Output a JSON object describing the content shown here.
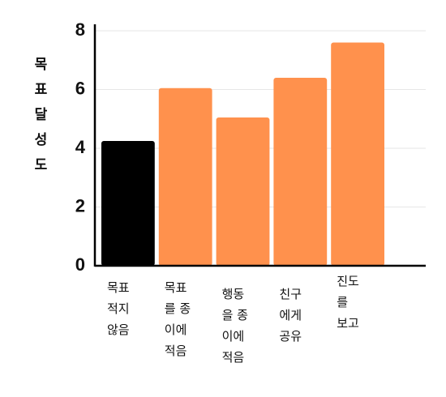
{
  "chart_data": {
    "type": "bar",
    "y_label": "목표달성도",
    "categories": [
      "목표\n적지\n않음",
      "목표\n를 종\n이에\n적음",
      "행동\n을 종\n이에\n적음",
      "친구\n에게\n공유",
      "진도\n를\n보고"
    ],
    "values": [
      4.25,
      6.05,
      5.05,
      6.4,
      7.6
    ],
    "colors": [
      "#000000",
      "#ff914d",
      "#ff914d",
      "#ff914d",
      "#ff914d"
    ],
    "ylim": [
      0,
      8
    ],
    "yticks": [
      0,
      2,
      4,
      6,
      8
    ],
    "grid": true
  }
}
